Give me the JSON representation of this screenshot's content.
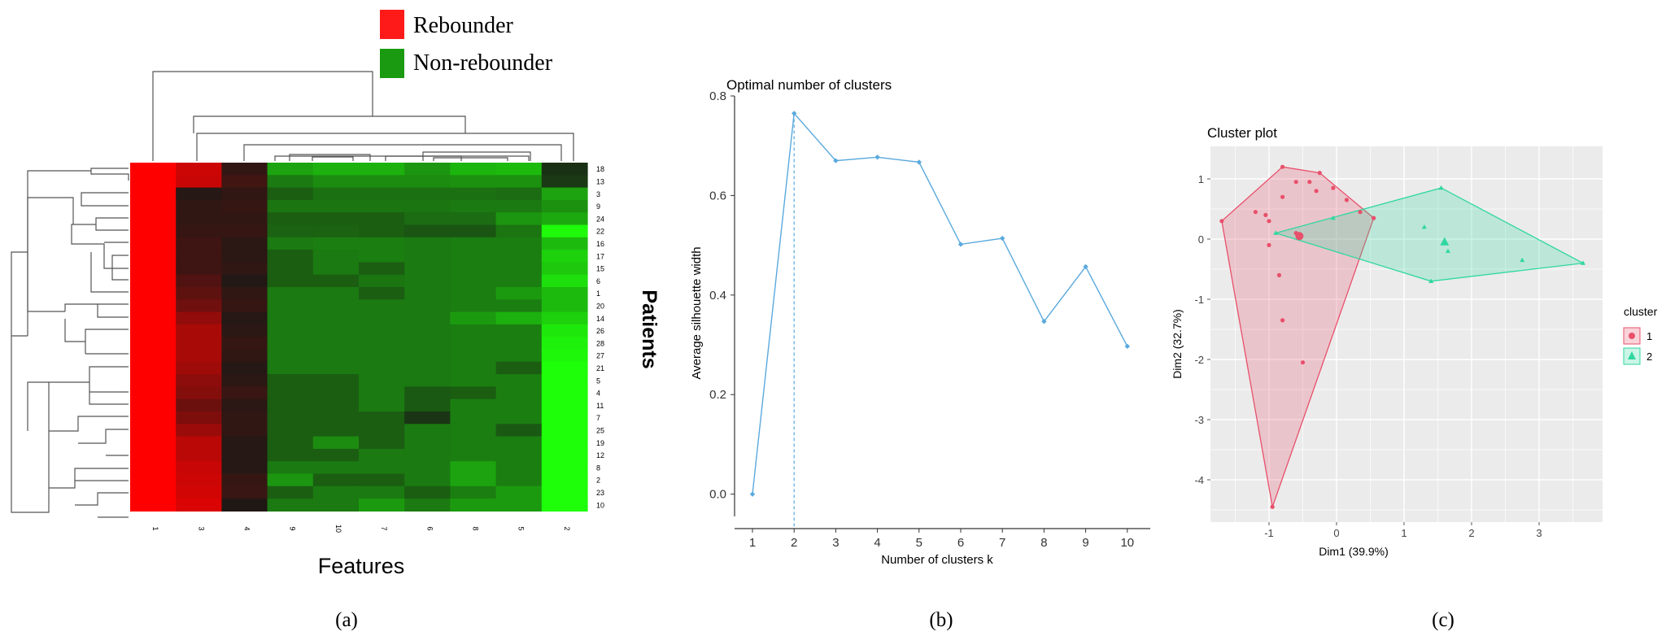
{
  "colors": {
    "rebounder": "#ff1a1a",
    "nonrebounder": "#1a9a10",
    "line_b": "#5aa9dd",
    "cluster1": "#e8506b",
    "cluster2": "#2fd7a0",
    "panel_c_bg": "#ebebeb"
  },
  "panel_a": {
    "legend": [
      {
        "label": "Rebounder",
        "color": "#ff1a1a"
      },
      {
        "label": "Non-rebounder",
        "color": "#1a9a10"
      }
    ],
    "xlabel": "Features",
    "ylabel": "Patients",
    "caption": "(a)"
  },
  "panel_b": {
    "title": "Optimal number of clusters",
    "xlabel": "Number of clusters k",
    "ylabel": "Average silhouette width",
    "caption": "(b)"
  },
  "panel_c": {
    "title": "Cluster plot",
    "xlabel": "Dim1 (39.9%)",
    "ylabel": "Dim2 (32.7%)",
    "legend_title": "cluster",
    "legend": [
      "1",
      "2"
    ],
    "caption": "(c)"
  },
  "chart_data": [
    {
      "type": "heatmap",
      "columns": [
        "1",
        "3",
        "4",
        "9",
        "10",
        "7",
        "6",
        "8",
        "5",
        "2"
      ],
      "rows": [
        "18",
        "13",
        "3",
        "9",
        "24",
        "22",
        "16",
        "17",
        "15",
        "6",
        "1",
        "20",
        "14",
        "26",
        "28",
        "27",
        "21",
        "5",
        "4",
        "11",
        "7",
        "25",
        "19",
        "12",
        "8",
        "2",
        "23",
        "10"
      ],
      "cells": [
        [
          1.0,
          0.78,
          0.11,
          -0.6,
          -0.66,
          -0.66,
          -0.54,
          -0.68,
          -0.7,
          -0.1
        ],
        [
          1.0,
          0.76,
          0.17,
          -0.42,
          -0.5,
          -0.5,
          -0.5,
          -0.52,
          -0.52,
          -0.14
        ],
        [
          1.0,
          0.05,
          0.1,
          -0.3,
          -0.38,
          -0.38,
          -0.38,
          -0.38,
          -0.36,
          -0.6
        ],
        [
          1.0,
          0.1,
          0.12,
          -0.4,
          -0.4,
          -0.4,
          -0.4,
          -0.42,
          -0.42,
          -0.52
        ],
        [
          1.0,
          0.1,
          0.1,
          -0.3,
          -0.3,
          -0.3,
          -0.36,
          -0.36,
          -0.54,
          -0.62
        ],
        [
          1.0,
          0.12,
          0.12,
          -0.32,
          -0.32,
          -0.3,
          -0.26,
          -0.26,
          -0.4,
          -0.98
        ],
        [
          1.0,
          0.16,
          0.08,
          -0.42,
          -0.44,
          -0.44,
          -0.42,
          -0.44,
          -0.44,
          -0.7
        ],
        [
          1.0,
          0.16,
          0.08,
          -0.3,
          -0.42,
          -0.44,
          -0.42,
          -0.44,
          -0.44,
          -0.8
        ],
        [
          1.0,
          0.16,
          0.1,
          -0.3,
          -0.42,
          -0.3,
          -0.42,
          -0.44,
          -0.44,
          -0.76
        ],
        [
          1.0,
          0.24,
          0.04,
          -0.3,
          -0.3,
          -0.4,
          -0.42,
          -0.44,
          -0.44,
          -0.86
        ],
        [
          1.0,
          0.3,
          0.1,
          -0.42,
          -0.42,
          -0.3,
          -0.42,
          -0.44,
          -0.56,
          -0.7
        ],
        [
          1.0,
          0.38,
          0.12,
          -0.42,
          -0.42,
          -0.42,
          -0.42,
          -0.44,
          -0.44,
          -0.7
        ],
        [
          1.0,
          0.52,
          0.05,
          -0.42,
          -0.42,
          -0.42,
          -0.42,
          -0.56,
          -0.66,
          -0.8
        ],
        [
          1.0,
          0.62,
          0.08,
          -0.42,
          -0.42,
          -0.42,
          -0.42,
          -0.44,
          -0.44,
          -0.9
        ],
        [
          1.0,
          0.62,
          0.12,
          -0.42,
          -0.42,
          -0.42,
          -0.42,
          -0.44,
          -0.44,
          -0.94
        ],
        [
          1.0,
          0.62,
          0.1,
          -0.42,
          -0.42,
          -0.42,
          -0.42,
          -0.44,
          -0.44,
          -0.96
        ],
        [
          1.0,
          0.58,
          0.05,
          -0.42,
          -0.42,
          -0.42,
          -0.42,
          -0.44,
          -0.3,
          -1.0
        ],
        [
          1.0,
          0.5,
          0.08,
          -0.3,
          -0.3,
          -0.42,
          -0.42,
          -0.44,
          -0.44,
          -1.0
        ],
        [
          1.0,
          0.46,
          0.14,
          -0.3,
          -0.3,
          -0.42,
          -0.28,
          -0.3,
          -0.44,
          -1.0
        ],
        [
          1.0,
          0.36,
          0.08,
          -0.3,
          -0.3,
          -0.42,
          -0.28,
          -0.44,
          -0.44,
          -1.0
        ],
        [
          1.0,
          0.44,
          0.1,
          -0.3,
          -0.3,
          -0.3,
          -0.12,
          -0.44,
          -0.44,
          -1.0
        ],
        [
          1.0,
          0.56,
          0.1,
          -0.3,
          -0.3,
          -0.3,
          -0.42,
          -0.44,
          -0.28,
          -1.0
        ],
        [
          1.0,
          0.7,
          0.05,
          -0.3,
          -0.5,
          -0.3,
          -0.42,
          -0.44,
          -0.44,
          -1.0
        ],
        [
          1.0,
          0.7,
          0.05,
          -0.3,
          -0.3,
          -0.42,
          -0.42,
          -0.44,
          -0.44,
          -1.0
        ],
        [
          1.0,
          0.76,
          0.05,
          -0.42,
          -0.42,
          -0.42,
          -0.42,
          -0.6,
          -0.44,
          -1.0
        ],
        [
          1.0,
          0.78,
          0.12,
          -0.54,
          -0.3,
          -0.3,
          -0.42,
          -0.6,
          -0.44,
          -1.0
        ],
        [
          1.0,
          0.8,
          0.14,
          -0.3,
          -0.42,
          -0.42,
          -0.3,
          -0.44,
          -0.56,
          -1.0
        ],
        [
          1.0,
          0.84,
          0.03,
          -0.42,
          -0.42,
          -0.56,
          -0.42,
          -0.56,
          -0.56,
          -1.0
        ]
      ],
      "xlabel": "Features",
      "ylabel": "Patients"
    },
    {
      "type": "line",
      "title": "Optimal number of clusters",
      "xlabel": "Number of clusters k",
      "ylabel": "Average silhouette width",
      "x": [
        1,
        2,
        3,
        4,
        5,
        6,
        7,
        8,
        9,
        10
      ],
      "values": [
        0.0,
        0.765,
        0.67,
        0.677,
        0.667,
        0.502,
        0.514,
        0.347,
        0.457,
        0.297
      ],
      "optimal_k": 2,
      "ylim": [
        -0.03,
        0.8
      ],
      "yticks": [
        0.0,
        0.2,
        0.4,
        0.6,
        0.8
      ],
      "yticklabels": [
        "0.0",
        "0.2",
        "0.4",
        "0.6",
        "0.8"
      ],
      "xticklabels": [
        "1",
        "2",
        "3",
        "4",
        "5",
        "6",
        "7",
        "8",
        "9",
        "10"
      ],
      "grid": false
    },
    {
      "type": "scatter",
      "title": "Cluster plot",
      "xlabel": "Dim1 (39.9%)",
      "ylabel": "Dim2 (32.7%)",
      "xlim": [
        -1.9,
        3.9
      ],
      "ylim": [
        -4.6,
        1.4
      ],
      "xticks": [
        -1,
        0,
        1,
        2,
        3
      ],
      "xticklabels": [
        "-1",
        "0",
        "1",
        "2",
        "3"
      ],
      "yticks": [
        1,
        0,
        -1,
        -2,
        -3,
        -4
      ],
      "yticklabels": [
        "1",
        "0",
        "-1",
        "-2",
        "-3",
        "-4"
      ],
      "grid": true,
      "legend_position": "right",
      "series": [
        {
          "name": "1",
          "points": [
            [
              -1.7,
              0.3
            ],
            [
              -0.8,
              1.2
            ],
            [
              -0.25,
              1.1
            ],
            [
              0.55,
              0.35
            ],
            [
              -0.95,
              -4.45
            ],
            [
              -1.0,
              0.3
            ],
            [
              -0.8,
              0.7
            ],
            [
              -0.6,
              0.95
            ],
            [
              -0.4,
              0.95
            ],
            [
              -0.3,
              0.8
            ],
            [
              -0.05,
              0.85
            ],
            [
              0.15,
              0.65
            ],
            [
              0.35,
              0.45
            ],
            [
              -1.2,
              0.45
            ],
            [
              -1.05,
              0.4
            ],
            [
              -1.0,
              -0.1
            ],
            [
              -0.85,
              -0.6
            ],
            [
              -0.8,
              -1.35
            ],
            [
              -0.5,
              -2.05
            ],
            [
              -0.6,
              0.1
            ]
          ],
          "hull": [
            [
              -1.7,
              0.3
            ],
            [
              -0.8,
              1.2
            ],
            [
              -0.25,
              1.1
            ],
            [
              0.55,
              0.35
            ],
            [
              -0.95,
              -4.45
            ]
          ],
          "centroid": [
            -0.55,
            0.05
          ]
        },
        {
          "name": "2",
          "points": [
            [
              -0.9,
              0.1
            ],
            [
              1.55,
              0.85
            ],
            [
              3.65,
              -0.4
            ],
            [
              1.4,
              -0.7
            ],
            [
              1.3,
              0.2
            ],
            [
              1.65,
              -0.2
            ],
            [
              2.75,
              -0.35
            ],
            [
              -0.05,
              0.35
            ]
          ],
          "hull": [
            [
              -0.9,
              0.1
            ],
            [
              1.55,
              0.85
            ],
            [
              3.65,
              -0.4
            ],
            [
              1.4,
              -0.7
            ]
          ],
          "centroid": [
            1.6,
            -0.05
          ]
        }
      ]
    }
  ]
}
